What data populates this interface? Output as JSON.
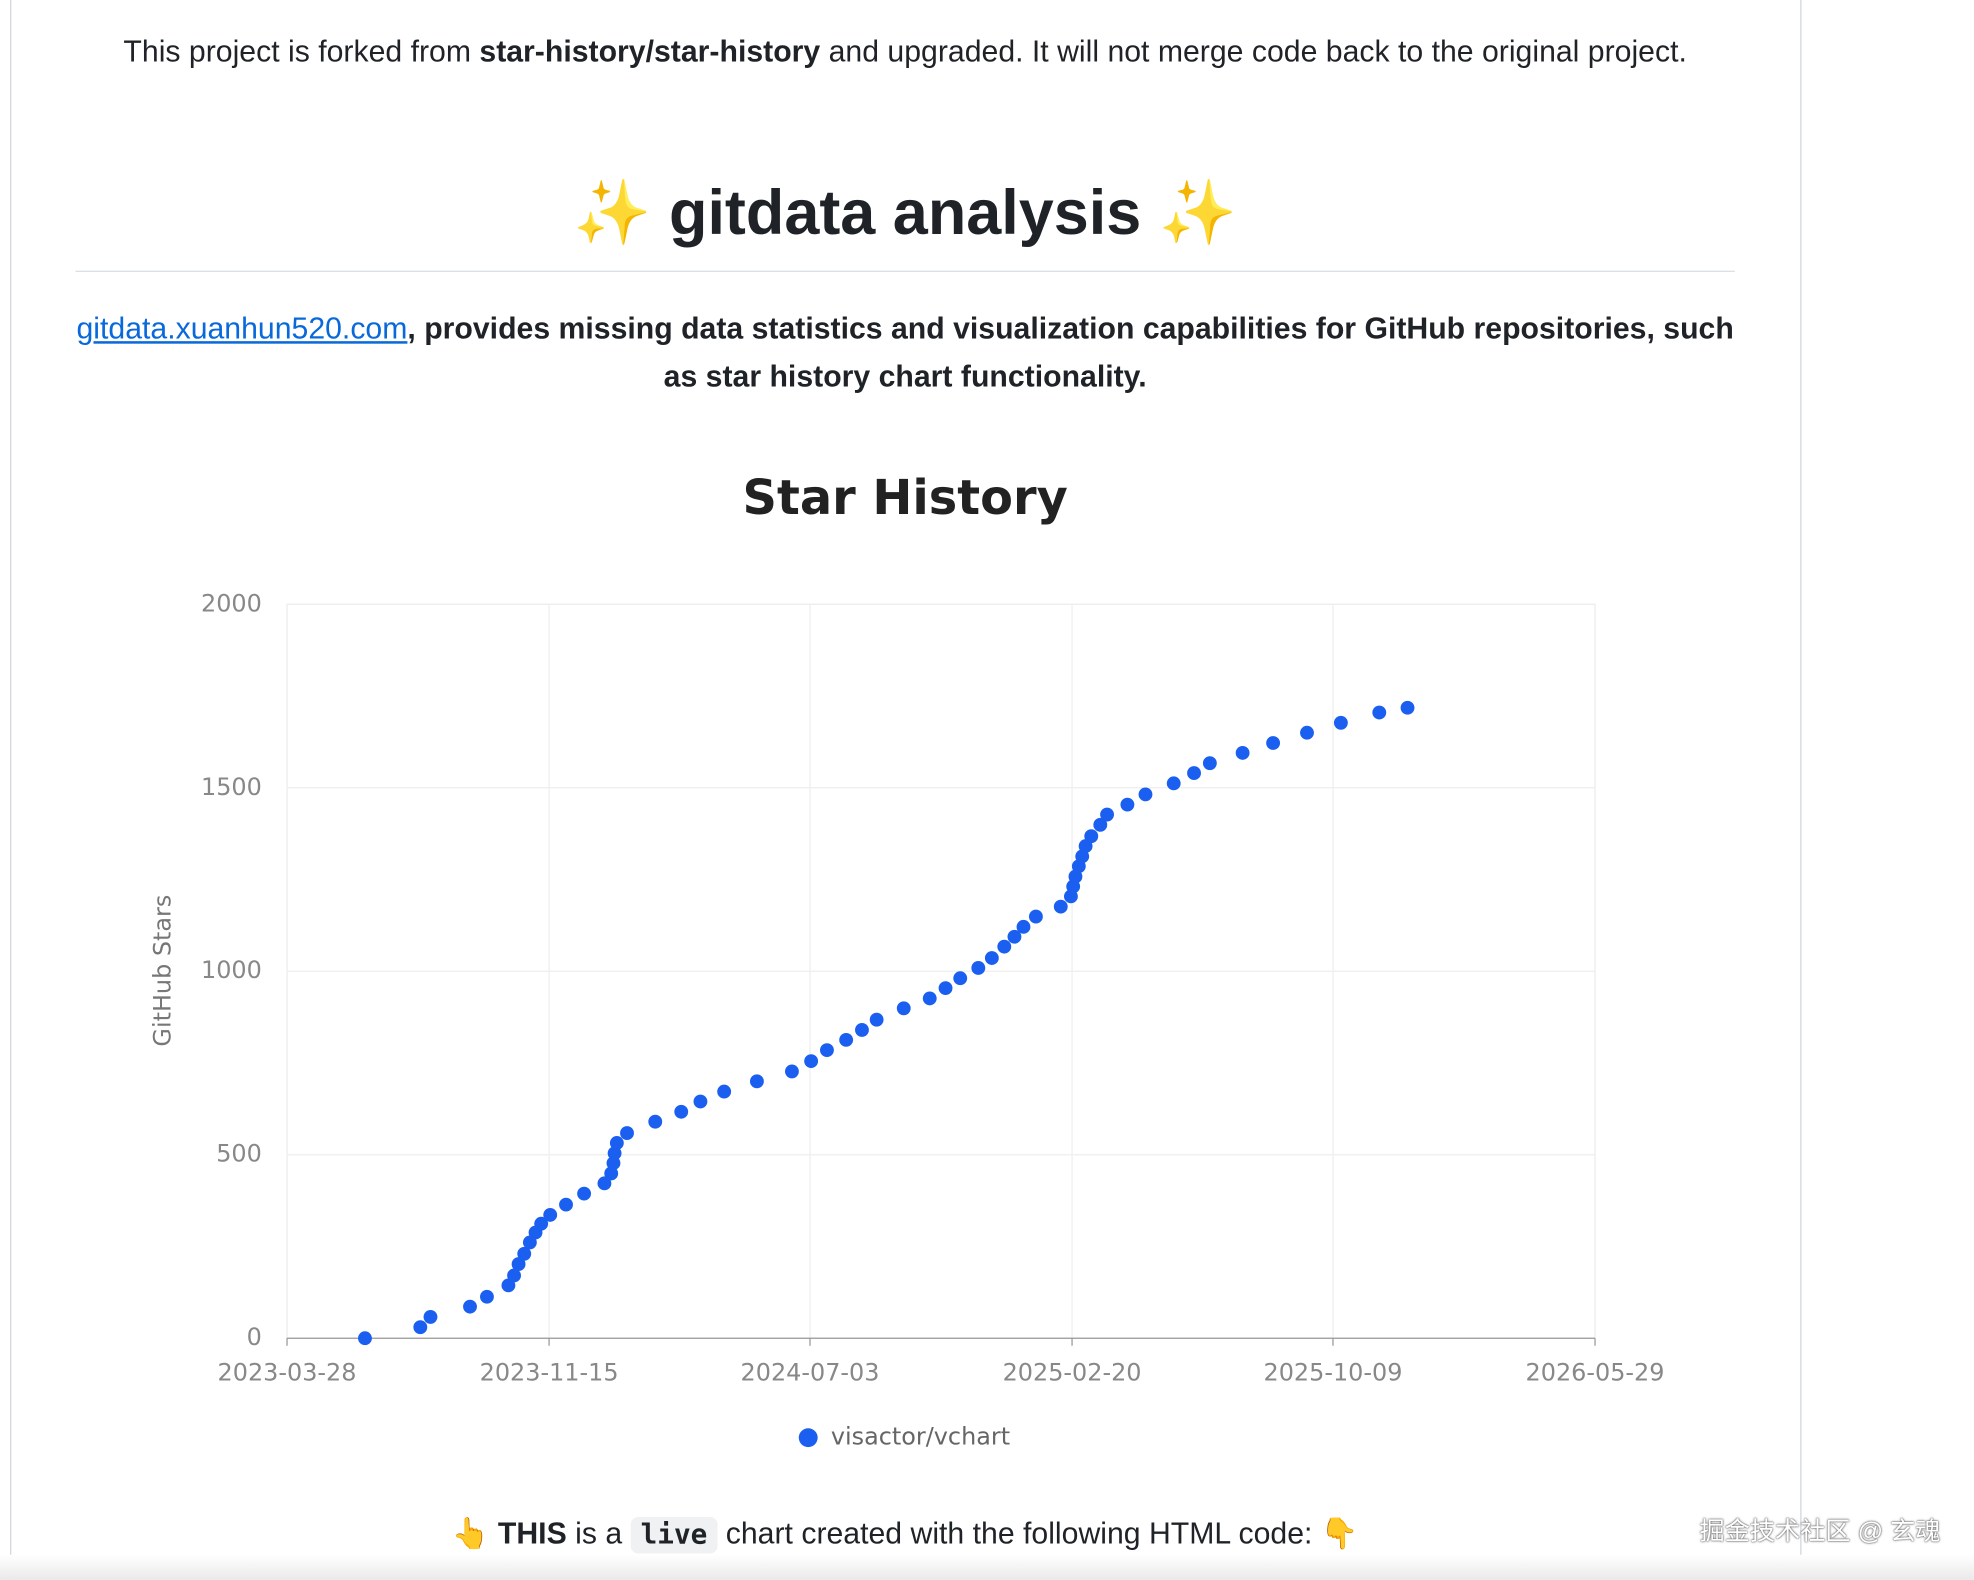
{
  "intro": {
    "before": "This project is forked from ",
    "bold": "star-history/star-history",
    "after": " and upgraded. It will not merge code back to the original project."
  },
  "heading": "✨ gitdata analysis ✨",
  "description": {
    "link": "gitdata.xuanhun520.com",
    "text": ", provides missing data statistics and visualization capabilities for GitHub repositories, such as star history chart functionality."
  },
  "chart_data": {
    "type": "line",
    "title": "Star History",
    "y_label": "GitHub Stars",
    "x": [
      "2023-06-05",
      "2023-07-24",
      "2023-08-02",
      "2023-09-06",
      "2023-09-21",
      "2023-10-10",
      "2023-10-15",
      "2023-10-19",
      "2023-10-24",
      "2023-10-29",
      "2023-11-03",
      "2023-11-08",
      "2023-11-16",
      "2023-11-30",
      "2023-12-16",
      "2024-01-03",
      "2024-01-09",
      "2024-01-11",
      "2024-01-12",
      "2024-01-14",
      "2024-01-23",
      "2024-02-17",
      "2024-03-11",
      "2024-03-28",
      "2024-04-18",
      "2024-05-17",
      "2024-06-17",
      "2024-07-04",
      "2024-07-18",
      "2024-08-04",
      "2024-08-18",
      "2024-08-31",
      "2024-09-24",
      "2024-10-17",
      "2024-10-31",
      "2024-11-13",
      "2024-11-29",
      "2024-12-11",
      "2024-12-22",
      "2024-12-31",
      "2025-01-08",
      "2025-01-19",
      "2025-02-10",
      "2025-02-19",
      "2025-02-21",
      "2025-02-23",
      "2025-02-26",
      "2025-03-01",
      "2025-03-04",
      "2025-03-09",
      "2025-03-17",
      "2025-03-23",
      "2025-04-10",
      "2025-04-26",
      "2025-05-21",
      "2025-06-08",
      "2025-06-22",
      "2025-07-21",
      "2025-08-17",
      "2025-09-16",
      "2025-10-16",
      "2025-11-19",
      "2025-12-14"
    ],
    "series": [
      {
        "name": "visactor/vchart",
        "color": "#1a5ff0",
        "values": [
          0,
          30,
          58,
          86,
          113,
          144,
          171,
          202,
          230,
          261,
          288,
          312,
          336,
          364,
          394,
          422,
          449,
          477,
          504,
          532,
          559,
          590,
          617,
          645,
          672,
          700,
          727,
          755,
          785,
          813,
          840,
          868,
          899,
          926,
          954,
          981,
          1009,
          1036,
          1067,
          1094,
          1121,
          1149,
          1176,
          1204,
          1231,
          1258,
          1286,
          1313,
          1341,
          1368,
          1399,
          1427,
          1454,
          1482,
          1512,
          1540,
          1567,
          1595,
          1622,
          1650,
          1677,
          1705,
          1718
        ]
      }
    ],
    "xlim": [
      "2023-03-28",
      "2026-05-29"
    ],
    "xticks": [
      "2023-03-28",
      "2023-11-15",
      "2024-07-03",
      "2025-02-20",
      "2025-10-09",
      "2026-05-29"
    ],
    "ylim": [
      0,
      2000
    ],
    "yticks": [
      0,
      500,
      1000,
      1500,
      2000
    ],
    "grid": true,
    "legend": "bottom"
  },
  "footer": {
    "pointer": "👆 ",
    "bold": "THIS",
    "mid": " is a ",
    "code": "live",
    "after": " chart created with the following HTML code: 👇"
  },
  "watermark": "掘金技术社区 @ 玄魂"
}
